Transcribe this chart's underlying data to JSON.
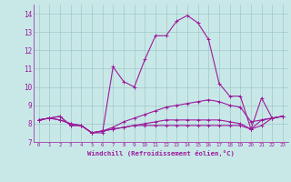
{
  "xlabel": "Windchill (Refroidissement éolien,°C)",
  "background_color": "#c8e8e8",
  "line_color": "#9b1a9b",
  "grid_color": "#a0c8c8",
  "xlim": [
    -0.5,
    23.5
  ],
  "ylim": [
    7.0,
    14.5
  ],
  "yticks": [
    7,
    8,
    9,
    10,
    11,
    12,
    13,
    14
  ],
  "xticks": [
    0,
    1,
    2,
    3,
    4,
    5,
    6,
    7,
    8,
    9,
    10,
    11,
    12,
    13,
    14,
    15,
    16,
    17,
    18,
    19,
    20,
    21,
    22,
    23
  ],
  "series": [
    [
      8.2,
      8.3,
      8.4,
      7.9,
      7.9,
      7.5,
      7.5,
      11.1,
      10.3,
      10.0,
      11.5,
      12.8,
      12.8,
      13.6,
      13.9,
      13.5,
      12.6,
      10.2,
      9.5,
      9.5,
      7.7,
      9.4,
      8.3,
      8.4
    ],
    [
      8.2,
      8.3,
      8.4,
      7.9,
      7.9,
      7.5,
      7.6,
      7.8,
      8.1,
      8.3,
      8.5,
      8.7,
      8.9,
      9.0,
      9.1,
      9.2,
      9.3,
      9.2,
      9.0,
      8.9,
      8.1,
      8.2,
      8.3,
      8.4
    ],
    [
      8.2,
      8.3,
      8.2,
      8.0,
      7.9,
      7.5,
      7.6,
      7.7,
      7.8,
      7.9,
      7.9,
      7.9,
      7.9,
      7.9,
      7.9,
      7.9,
      7.9,
      7.9,
      7.9,
      7.9,
      7.7,
      8.2,
      8.3,
      8.4
    ],
    [
      8.2,
      8.3,
      8.2,
      8.0,
      7.9,
      7.5,
      7.6,
      7.7,
      7.8,
      7.9,
      8.0,
      8.1,
      8.2,
      8.2,
      8.2,
      8.2,
      8.2,
      8.2,
      8.1,
      8.0,
      7.7,
      7.9,
      8.3,
      8.4
    ]
  ]
}
